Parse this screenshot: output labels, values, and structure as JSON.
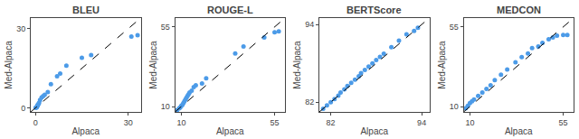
{
  "chart_data": [
    {
      "type": "scatter",
      "title": "BLEU",
      "xlabel": "Alpaca",
      "ylabel": "Med-Alpaca",
      "xlim": [
        -1.5,
        34
      ],
      "ylim": [
        -1.5,
        34
      ],
      "xticks": [
        0,
        30
      ],
      "yticks": [
        0,
        30
      ],
      "grid": false,
      "series": [
        {
          "type": "scatter",
          "color": "#4C9BE8",
          "x": [
            0.1,
            0.2,
            0.3,
            0.4,
            0.5,
            0.6,
            0.7,
            0.8,
            1.0,
            1.2,
            1.5,
            2.0,
            2.5,
            3.0,
            4.0,
            5.0,
            7.0,
            8.0,
            10.0,
            15.0,
            18.0,
            31.0,
            33.0
          ],
          "values": [
            0.1,
            0.1,
            0.2,
            0.3,
            0.5,
            0.7,
            1.0,
            1.2,
            1.5,
            2.0,
            3.0,
            4.0,
            4.5,
            5.0,
            6.0,
            9.0,
            12.0,
            13.0,
            16.0,
            19.0,
            20.0,
            27.0,
            27.5
          ]
        },
        {
          "type": "line",
          "line_style": "dashed",
          "color": "#000000",
          "x": [
            -1.5,
            34
          ],
          "values": [
            -1.5,
            34
          ]
        }
      ]
    },
    {
      "type": "scatter",
      "title": "ROUGE-L",
      "xlabel": "Alpaca",
      "ylabel": "Med-Alpaca",
      "xlim": [
        7,
        60
      ],
      "ylim": [
        7,
        60
      ],
      "xticks": [
        10,
        55
      ],
      "yticks": [
        10,
        55
      ],
      "grid": false,
      "series": [
        {
          "type": "scatter",
          "color": "#4C9BE8",
          "x": [
            8.0,
            9.0,
            9.5,
            10.0,
            10.5,
            11.0,
            11.5,
            12.0,
            12.5,
            13.0,
            13.5,
            14.0,
            15.0,
            16.0,
            17.0,
            20.0,
            22.0,
            36.0,
            40.0,
            50.0,
            55.0,
            57.0
          ],
          "values": [
            8.0,
            9.0,
            9.5,
            10.5,
            11.0,
            12.0,
            13.0,
            14.0,
            15.0,
            16.0,
            17.0,
            18.0,
            19.0,
            21.0,
            22.0,
            23.0,
            26.0,
            40.0,
            44.0,
            49.0,
            52.0,
            52.5
          ]
        },
        {
          "type": "line",
          "line_style": "dashed",
          "color": "#000000",
          "x": [
            7,
            60
          ],
          "values": [
            7,
            60
          ]
        }
      ]
    },
    {
      "type": "scatter",
      "title": "BERTScore",
      "xlabel": "Alpaca",
      "ylabel": "Med-Alpaca",
      "xlim": [
        80.5,
        95
      ],
      "ylim": [
        80.5,
        95
      ],
      "xticks": [
        82,
        94
      ],
      "yticks": [
        82,
        94
      ],
      "grid": false,
      "series": [
        {
          "type": "scatter",
          "color": "#4C9BE8",
          "x": [
            81.0,
            81.5,
            82.0,
            82.5,
            83.0,
            83.3,
            83.8,
            84.2,
            84.7,
            85.2,
            85.7,
            86.0,
            86.5,
            87.0,
            87.5,
            88.0,
            88.5,
            89.0,
            90.0,
            91.0,
            92.0,
            93.0,
            93.5
          ],
          "values": [
            81.0,
            81.5,
            82.0,
            82.5,
            83.0,
            83.5,
            84.0,
            84.5,
            85.0,
            85.5,
            86.0,
            86.5,
            87.0,
            87.5,
            88.0,
            88.5,
            89.0,
            89.5,
            90.5,
            91.5,
            92.5,
            93.0,
            93.5
          ]
        },
        {
          "type": "line",
          "line_style": "dashed",
          "color": "#000000",
          "x": [
            80.5,
            95
          ],
          "values": [
            80.5,
            95
          ]
        }
      ]
    },
    {
      "type": "scatter",
      "title": "MEDCON",
      "xlabel": "Alpaca",
      "ylabel": "Med-Alpaca",
      "xlim": [
        7,
        60
      ],
      "ylim": [
        7,
        60
      ],
      "xticks": [
        10,
        55
      ],
      "yticks": [
        10,
        55
      ],
      "grid": false,
      "series": [
        {
          "type": "scatter",
          "color": "#4C9BE8",
          "x": [
            8.0,
            9.0,
            10.0,
            11.0,
            12.0,
            14.0,
            16.0,
            18.0,
            20.0,
            22.0,
            25.0,
            28.0,
            32.0,
            35.0,
            38.0,
            40.0,
            43.0,
            45.0,
            48.0,
            50.0,
            52.0,
            55.0,
            57.0
          ],
          "values": [
            9.0,
            10.5,
            12.0,
            13.0,
            14.0,
            16.0,
            18.0,
            20.0,
            22.0,
            25.0,
            28.0,
            31.0,
            35.0,
            38.0,
            40.0,
            43.0,
            44.0,
            46.0,
            48.0,
            49.0,
            50.0,
            50.5,
            50.5
          ]
        },
        {
          "type": "line",
          "line_style": "dashed",
          "color": "#000000",
          "x": [
            7,
            60
          ],
          "values": [
            7,
            60
          ]
        }
      ]
    }
  ]
}
